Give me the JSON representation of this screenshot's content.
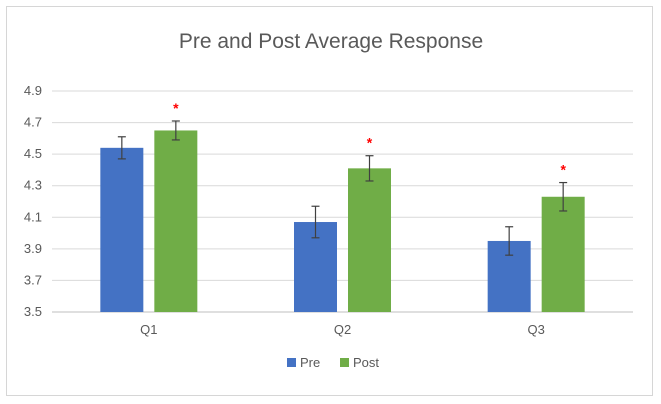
{
  "chart_data": {
    "type": "bar",
    "title": "Pre and Post Average Response",
    "xlabel": "",
    "ylabel": "",
    "categories": [
      "Q1",
      "Q2",
      "Q3"
    ],
    "ylim": [
      3.5,
      4.9
    ],
    "yticks": [
      "3.5",
      "3.7",
      "3.9",
      "4.1",
      "4.3",
      "4.5",
      "4.7",
      "4.9"
    ],
    "grid": true,
    "legend_position": "bottom",
    "series": [
      {
        "name": "Pre",
        "color": "#4472c4",
        "values": [
          4.54,
          4.07,
          3.95
        ],
        "error": [
          0.07,
          0.1,
          0.09
        ],
        "significance": [
          "",
          "",
          ""
        ]
      },
      {
        "name": "Post",
        "color": "#70ad47",
        "values": [
          4.65,
          4.41,
          4.23
        ],
        "error": [
          0.06,
          0.08,
          0.09
        ],
        "significance": [
          "*",
          "*",
          "*"
        ]
      }
    ],
    "significance_color": "#ff0000"
  }
}
